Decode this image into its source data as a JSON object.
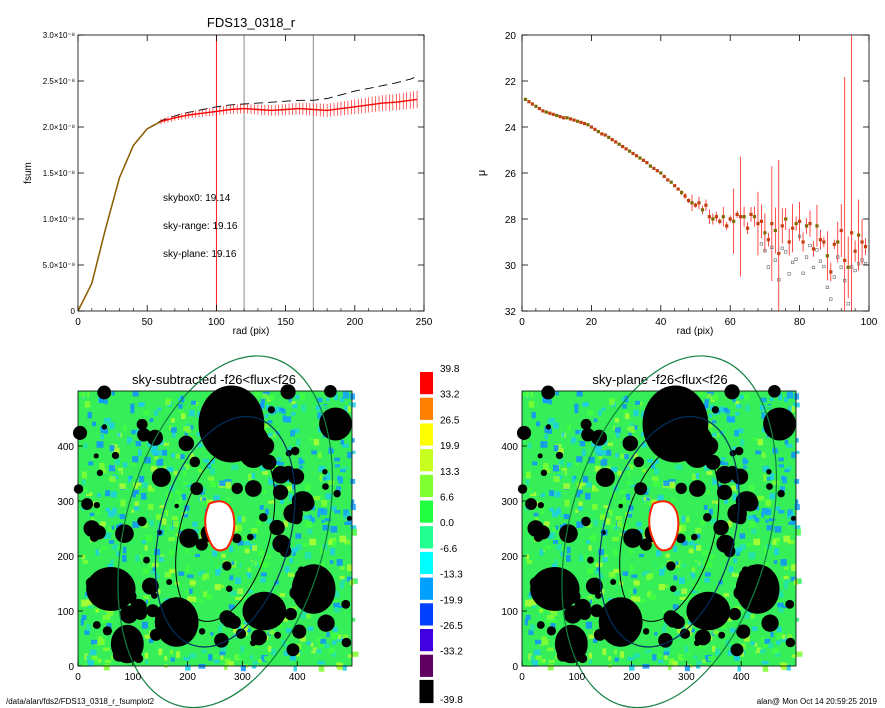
{
  "footer": {
    "path": "/data/alan/fds2/FDS13_0318_r_fsumplot2",
    "stamp": "alan@  Mon Oct 14 20:59:25 2019"
  },
  "colors": {
    "axes": "#000000",
    "sky_range": "#ff0000",
    "sky_plane": "#00cc00",
    "growth_curve": "#7a6a00",
    "marker_vline": "#808080",
    "masked": "#000000",
    "galaxy": "#ffffff"
  },
  "chart_data": [
    {
      "type": "line",
      "title": "FDS13_0318_r",
      "xlabel": "rad (pix)",
      "ylabel": "fsum",
      "xlim": [
        0,
        250
      ],
      "ylim": [
        0,
        3e-08
      ],
      "xticks": [
        "0",
        "50",
        "100",
        "150",
        "200",
        "250"
      ],
      "yticks": [
        "0",
        "5.0×10⁻⁹",
        "1.0×10⁻⁸",
        "1.5×10⁻⁸",
        "2.0×10⁻⁸",
        "2.5×10⁻⁸",
        "3.0×10⁻⁸"
      ],
      "x": [
        0,
        10,
        20,
        30,
        40,
        50,
        60,
        70,
        80,
        90,
        100,
        110,
        120,
        130,
        140,
        150,
        160,
        170,
        180,
        190,
        200,
        210,
        220,
        230,
        240,
        245
      ],
      "series": [
        {
          "values": [
            0,
            3e-09,
            9e-09,
            1.45e-08,
            1.8e-08,
            1.98e-08,
            2.06e-08,
            2.1e-08,
            2.13e-08,
            2.15e-08,
            2.17e-08,
            2.19e-08,
            2.2e-08,
            2.19e-08,
            2.18e-08,
            2.19e-08,
            2.2e-08,
            2.19e-08,
            2.18e-08,
            2.2e-08,
            2.22e-08,
            2.24e-08,
            2.26e-08,
            2.27e-08,
            2.29e-08,
            2.3e-08
          ]
        },
        {
          "values": [
            0,
            3e-09,
            9e-09,
            1.45e-08,
            1.8e-08,
            1.98e-08,
            2.07e-08,
            2.12e-08,
            2.16e-08,
            2.19e-08,
            2.22e-08,
            2.24e-08,
            2.25e-08,
            2.26e-08,
            2.27e-08,
            2.28e-08,
            2.29e-08,
            2.29e-08,
            2.31e-08,
            2.35e-08,
            2.39e-08,
            2.42e-08,
            2.45e-08,
            2.48e-08,
            2.52e-08,
            2.55e-08
          ]
        }
      ],
      "vlines": [
        100,
        120,
        170
      ],
      "annotations": [
        {
          "text": "skybox0: 19.14",
          "color": "#000000"
        },
        {
          "text": "sky-range: 19.16",
          "color": "#ff0000"
        },
        {
          "text": "sky-plane: 19.16",
          "color": "#00cc00"
        }
      ]
    },
    {
      "type": "scatter",
      "title": "",
      "xlabel": "rad (pix)",
      "ylabel": "μ",
      "xlim": [
        0,
        100
      ],
      "ylim": [
        32,
        20
      ],
      "xticks": [
        "0",
        "20",
        "40",
        "60",
        "80",
        "100"
      ],
      "yticks": [
        "20",
        "22",
        "24",
        "26",
        "28",
        "30",
        "32"
      ],
      "x": [
        1,
        2,
        3,
        4,
        5,
        6,
        7,
        8,
        9,
        10,
        11,
        12,
        13,
        14,
        15,
        16,
        17,
        18,
        19,
        20,
        21,
        22,
        23,
        24,
        25,
        26,
        27,
        28,
        29,
        30,
        31,
        32,
        33,
        34,
        35,
        36,
        37,
        38,
        39,
        40,
        41,
        42,
        43,
        44,
        45,
        46,
        47,
        48,
        49,
        50,
        51,
        52,
        53,
        54,
        55,
        56,
        57,
        58,
        59,
        60,
        61,
        62,
        63,
        64,
        65,
        66,
        67,
        68,
        69,
        70,
        71,
        72,
        73,
        74,
        75,
        76,
        77,
        78,
        79,
        80,
        81,
        82,
        83,
        84,
        85,
        86,
        87,
        88,
        89,
        90,
        91,
        92,
        93,
        94,
        95,
        96,
        97,
        98,
        99
      ],
      "values": [
        22.8,
        22.9,
        23.0,
        23.1,
        23.2,
        23.3,
        23.35,
        23.4,
        23.45,
        23.5,
        23.55,
        23.6,
        23.6,
        23.65,
        23.7,
        23.75,
        23.8,
        23.85,
        23.9,
        24.0,
        24.1,
        24.2,
        24.3,
        24.35,
        24.45,
        24.55,
        24.65,
        24.75,
        24.85,
        24.95,
        25.05,
        25.15,
        25.25,
        25.35,
        25.45,
        25.55,
        25.7,
        25.8,
        25.9,
        26.0,
        26.15,
        26.3,
        26.4,
        26.55,
        26.7,
        26.85,
        27.0,
        27.2,
        27.3,
        27.4,
        27.3,
        27.6,
        27.4,
        27.9,
        28.0,
        27.9,
        28.1,
        27.9,
        28.3,
        28.0,
        28.1,
        27.8,
        27.9,
        27.9,
        28.4,
        27.8,
        27.9,
        28.2,
        28.1,
        28.6,
        28.9,
        28.2,
        28.5,
        29.5,
        28.3,
        28.0,
        29.0,
        28.4,
        28.2,
        28.1,
        29.0,
        28.3,
        28.2,
        29.3,
        28.3,
        28.9,
        29.0,
        29.6,
        30.3,
        29.1,
        29.0,
        28.5,
        29.8,
        30.1,
        28.6,
        29.4,
        28.7,
        29.0,
        29.2
      ]
    },
    {
      "type": "heatmap",
      "title": "sky-subtracted -f26<flux<f26",
      "xlim": [
        0,
        500
      ],
      "ylim": [
        0,
        500
      ],
      "xticks": [
        "0",
        "100",
        "200",
        "300",
        "400"
      ],
      "yticks": [
        "0",
        "100",
        "200",
        "300",
        "400"
      ],
      "ellipse_center": [
        265,
        255
      ]
    },
    {
      "type": "heatmap",
      "title": "sky-plane -f26<flux<f26",
      "xlim": [
        0,
        500
      ],
      "ylim": [
        0,
        500
      ],
      "xticks": [
        "0",
        "100",
        "200",
        "300",
        "400"
      ],
      "yticks": [
        "0",
        "100",
        "200",
        "300",
        "400"
      ],
      "ellipse_center": [
        265,
        255
      ]
    }
  ],
  "colorbar": {
    "labels": [
      "39.8",
      "33.2",
      "26.5",
      "19.9",
      "13.3",
      "6.6",
      "0.0",
      "-6.6",
      "-13.3",
      "-19.9",
      "-26.5",
      "-33.2",
      "-39.8"
    ],
    "colors": [
      "#ff0000",
      "#ff8000",
      "#ffff00",
      "#c8ff20",
      "#80ff30",
      "#20ff40",
      "#20ff90",
      "#00ffff",
      "#00a0ff",
      "#0040ff",
      "#4000e0",
      "#600060",
      "#000000"
    ]
  }
}
